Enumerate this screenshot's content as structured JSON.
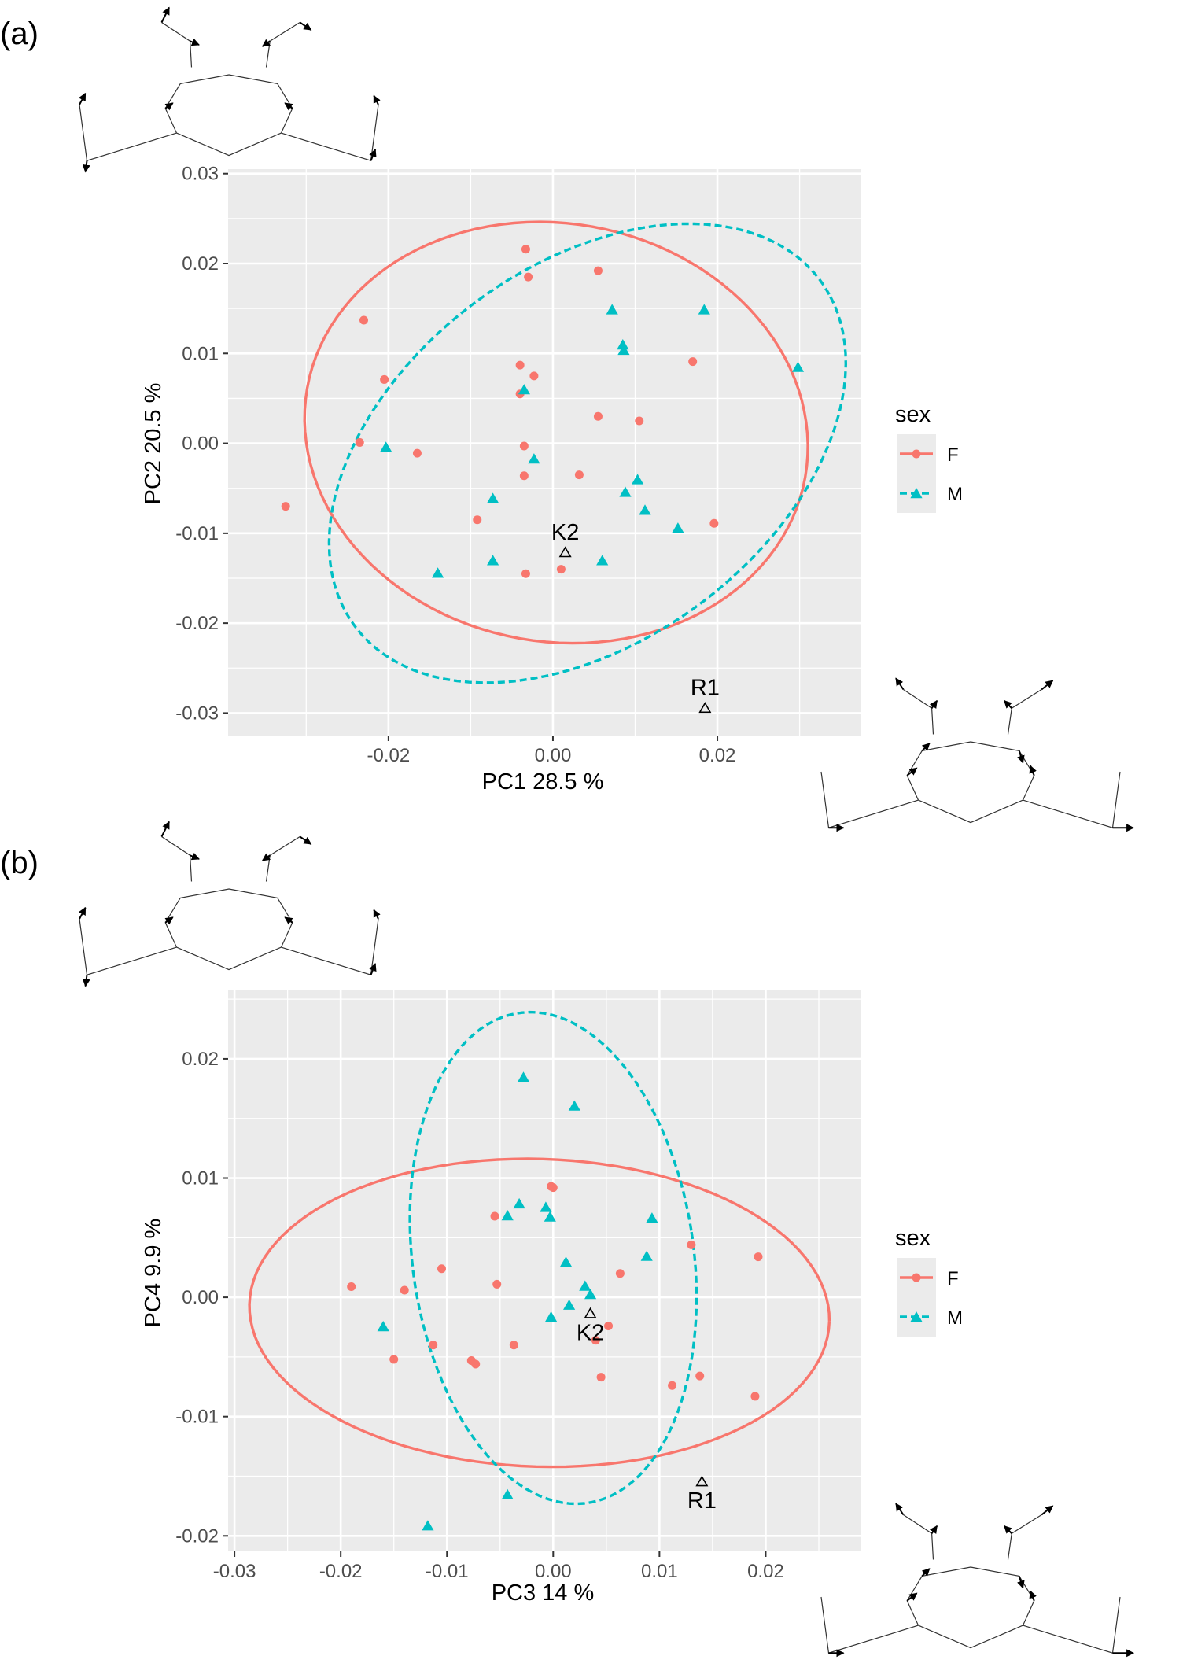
{
  "colors": {
    "F": "#F8766D",
    "M": "#00BFC4",
    "panel_bg": "#EBEBEB",
    "grid": "#FFFFFF",
    "annot": "#000000",
    "wire": "#333333"
  },
  "legend": {
    "title": "sex",
    "items": [
      {
        "key": "F",
        "label": "F",
        "shape": "circle",
        "line": "solid"
      },
      {
        "key": "M",
        "label": "M",
        "shape": "triangle",
        "line": "dashed"
      }
    ]
  },
  "chart_data": [
    {
      "type": "scatter",
      "panel": "(a)",
      "xlabel": "PC1 28.5 %",
      "ylabel": "PC2 20.5 %",
      "xlim": [
        -0.0395,
        0.0375
      ],
      "ylim": [
        -0.0325,
        0.0305
      ],
      "xticks": [
        -0.02,
        0,
        0.02
      ],
      "xtick_labels": [
        "-0.02",
        "0.00",
        "0.02"
      ],
      "yticks": [
        -0.03,
        -0.02,
        -0.01,
        0,
        0.01,
        0.02,
        0.03
      ],
      "ytick_labels": [
        "-0.03",
        "-0.02",
        "-0.01",
        "0.00",
        "0.01",
        "0.02",
        "0.03"
      ],
      "series": [
        {
          "name": "F",
          "points": [
            [
              -0.0033,
              0.0216
            ],
            [
              -0.003,
              0.0185
            ],
            [
              0.0055,
              0.0192
            ],
            [
              -0.023,
              0.0137
            ],
            [
              -0.004,
              0.0087
            ],
            [
              -0.0023,
              0.0075
            ],
            [
              -0.0205,
              0.0071
            ],
            [
              0.017,
              0.0091
            ],
            [
              -0.004,
              0.0055
            ],
            [
              0.0055,
              0.003
            ],
            [
              0.0105,
              0.0025
            ],
            [
              -0.0235,
              0.0001
            ],
            [
              -0.0035,
              -0.0003
            ],
            [
              -0.0165,
              -0.0011
            ],
            [
              -0.0035,
              -0.0036
            ],
            [
              0.0032,
              -0.0035
            ],
            [
              -0.0325,
              -0.007
            ],
            [
              -0.0092,
              -0.0085
            ],
            [
              0.0196,
              -0.0089
            ],
            [
              -0.0033,
              -0.0145
            ],
            [
              0.001,
              -0.014
            ]
          ]
        },
        {
          "name": "M",
          "points": [
            [
              0.0072,
              0.0148
            ],
            [
              0.0184,
              0.0148
            ],
            [
              0.0085,
              0.0109
            ],
            [
              0.0086,
              0.0103
            ],
            [
              0.0298,
              0.0084
            ],
            [
              -0.0035,
              0.0059
            ],
            [
              -0.0203,
              -0.0005
            ],
            [
              -0.0023,
              -0.0018
            ],
            [
              0.0103,
              -0.0041
            ],
            [
              0.0088,
              -0.0055
            ],
            [
              -0.0073,
              -0.0062
            ],
            [
              0.0112,
              -0.0075
            ],
            [
              0.0152,
              -0.0095
            ],
            [
              -0.0073,
              -0.0131
            ],
            [
              0.006,
              -0.0131
            ],
            [
              -0.014,
              -0.0145
            ]
          ]
        }
      ],
      "ellipses": [
        {
          "name": "F",
          "center": [
            0.0004,
            0.0012
          ],
          "ab": [
            0.0307,
            0.0233
          ],
          "angle": -7
        },
        {
          "name": "M",
          "center": [
            0.0042,
            -0.0011
          ],
          "ab": [
            0.0343,
            0.0215
          ],
          "angle": 31
        }
      ],
      "annotations": [
        {
          "label": "K2",
          "x": 0.0015,
          "y": -0.0122
        },
        {
          "label": "R1",
          "x": 0.0185,
          "y": -0.0295
        }
      ]
    },
    {
      "type": "scatter",
      "panel": "(b)",
      "xlabel": "PC3 14 %",
      "ylabel": "PC4 9.9 %",
      "xlim": [
        -0.0306,
        0.029
      ],
      "ylim": [
        -0.0213,
        0.0258
      ],
      "xticks": [
        -0.03,
        -0.02,
        -0.01,
        0,
        0.01,
        0.02
      ],
      "xtick_labels": [
        "-0.03",
        "-0.02",
        "-0.01",
        "0.00",
        "0.01",
        "0.02"
      ],
      "yticks": [
        -0.02,
        -0.01,
        0,
        0.01,
        0.02
      ],
      "ytick_labels": [
        "-0.02",
        "-0.01",
        "0.00",
        "0.01",
        "0.02"
      ],
      "series": [
        {
          "name": "F",
          "points": [
            [
              -0.0002,
              0.0093
            ],
            [
              0.0,
              0.0092
            ],
            [
              -0.0055,
              0.0068
            ],
            [
              0.013,
              0.0044
            ],
            [
              0.0193,
              0.0034
            ],
            [
              -0.0105,
              0.0024
            ],
            [
              0.0063,
              0.002
            ],
            [
              -0.019,
              0.0009
            ],
            [
              -0.0053,
              0.0011
            ],
            [
              -0.014,
              0.0006
            ],
            [
              0.0052,
              -0.0024
            ],
            [
              0.004,
              -0.0036
            ],
            [
              -0.0113,
              -0.004
            ],
            [
              -0.0037,
              -0.004
            ],
            [
              -0.015,
              -0.0052
            ],
            [
              -0.0077,
              -0.0053
            ],
            [
              -0.0073,
              -0.0056
            ],
            [
              0.0045,
              -0.0067
            ],
            [
              0.0138,
              -0.0066
            ],
            [
              0.0112,
              -0.0074
            ],
            [
              0.019,
              -0.0083
            ]
          ]
        },
        {
          "name": "M",
          "points": [
            [
              -0.0028,
              0.0184
            ],
            [
              0.002,
              0.016
            ],
            [
              -0.0032,
              0.0078
            ],
            [
              -0.0043,
              0.0068
            ],
            [
              -0.0007,
              0.0075
            ],
            [
              -0.0003,
              0.0067
            ],
            [
              0.0093,
              0.0066
            ],
            [
              0.0012,
              0.0029
            ],
            [
              0.0088,
              0.0034
            ],
            [
              0.003,
              0.0009
            ],
            [
              0.0035,
              0.0002
            ],
            [
              0.0015,
              -0.0007
            ],
            [
              -0.0002,
              -0.0017
            ],
            [
              -0.016,
              -0.0025
            ],
            [
              -0.0043,
              -0.0166
            ],
            [
              -0.0118,
              -0.0192
            ]
          ]
        }
      ],
      "ellipses": [
        {
          "name": "F",
          "center": [
            -0.0013,
            -0.0013
          ],
          "ab": [
            0.0273,
            0.0129
          ],
          "angle": -1.5
        },
        {
          "name": "M",
          "center": [
            0.0,
            0.0033
          ],
          "ab": [
            0.0132,
            0.0208
          ],
          "angle": 10
        }
      ],
      "annotations": [
        {
          "label": "K2",
          "x": 0.0035,
          "y": -0.0014,
          "label_pos": "below"
        },
        {
          "label": "R1",
          "x": 0.014,
          "y": -0.0155,
          "label_pos": "below"
        }
      ]
    }
  ]
}
